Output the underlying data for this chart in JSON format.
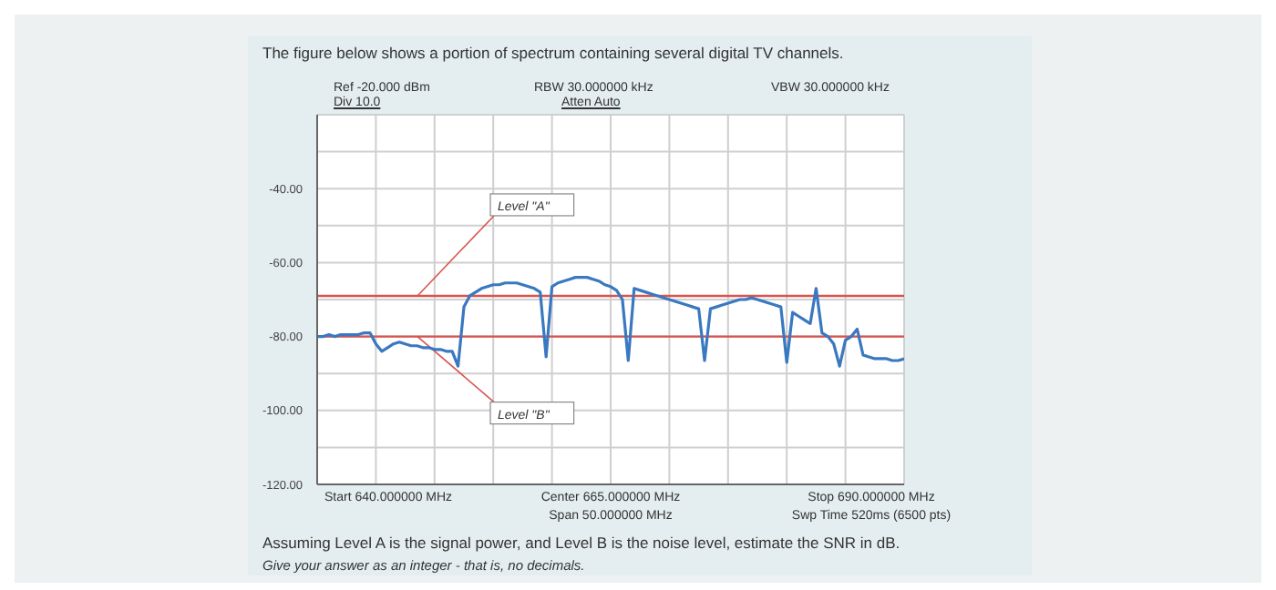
{
  "chart_data": {
    "type": "line",
    "title": "The figure below shows a portion of spectrum containing several digital TV channels.",
    "categories": [
      null,
      null,
      null,
      null,
      null,
      null,
      null,
      null,
      null,
      null,
      null,
      null,
      null,
      null,
      null,
      null,
      null,
      null,
      null,
      null,
      null,
      null,
      null,
      null,
      null,
      null,
      null,
      null,
      null,
      null,
      null,
      null,
      null,
      null,
      null,
      null,
      null,
      null,
      null,
      null,
      null,
      null,
      null,
      null,
      null,
      null,
      null,
      null,
      null,
      null,
      null,
      null,
      null,
      null,
      null,
      null,
      null,
      null,
      null,
      null,
      null,
      null,
      null,
      null,
      null,
      null,
      null,
      null,
      null,
      null,
      null,
      null,
      null,
      null,
      null,
      null,
      null,
      null,
      null,
      null,
      null,
      null,
      null,
      null,
      null,
      null,
      null,
      null,
      null,
      null,
      null,
      null,
      null,
      null,
      null,
      null,
      null,
      null,
      null,
      null,
      null
    ],
    "series": [
      {
        "color": "#3a78c0",
        "values": [
          -80,
          -80,
          -79.5,
          -80,
          -79.5,
          -79.5,
          -79.5,
          -79.5,
          -79,
          -79,
          -82,
          -84,
          -83,
          -82,
          -81.5,
          -82,
          -82.5,
          -82.5,
          -83,
          -83,
          -83.5,
          -83.5,
          -84,
          -84,
          -88,
          -72,
          -69,
          -68,
          -67,
          -66.5,
          -66,
          -66,
          -65.5,
          -65.5,
          -65.5,
          -66,
          -66.5,
          -67,
          -68,
          -85.5,
          -66.5,
          -65.5,
          -65,
          -64.5,
          -64,
          -64,
          -64,
          -64.5,
          -65,
          -66,
          -66.5,
          -67.5,
          -70,
          -86.5,
          -67,
          -67.5,
          -68,
          -68.5,
          -69,
          -69.5,
          -70,
          -70.5,
          -71,
          -71.5,
          -72,
          -72.5,
          -86.5,
          -72.5,
          -72,
          -71.5,
          -71,
          -70.5,
          -70,
          -70,
          -69.5,
          -70,
          -70.5,
          -71,
          -71.5,
          -72,
          -87,
          -73.5,
          -74.5,
          -75.5,
          -76.5,
          -67,
          -79,
          -80,
          -82,
          -88,
          -81,
          -80,
          -78,
          -85,
          -85.5,
          -86,
          -86,
          -86,
          -86.5,
          -86.5,
          -86
        ]
      }
    ],
    "ylim": [
      -120,
      -20
    ],
    "yticks": [
      {
        "value": -120,
        "label": "-120.00"
      },
      {
        "value": -110,
        "label": null
      },
      {
        "value": -100,
        "label": "-100.00"
      },
      {
        "value": -90,
        "label": null
      },
      {
        "value": -80,
        "label": "-80.00"
      },
      {
        "value": -70,
        "label": null
      },
      {
        "value": -60,
        "label": "-60.00"
      },
      {
        "value": -50,
        "label": null
      },
      {
        "value": -40,
        "label": "-40.00"
      },
      {
        "value": -30,
        "label": null
      },
      {
        "value": -20,
        "label": null
      }
    ],
    "tick_labels": "y",
    "grid": true,
    "ref_lines": [
      {
        "axis": "y",
        "value": -69,
        "label": "Level \"A\"",
        "color": "#d9534f"
      },
      {
        "axis": "y",
        "value": -80,
        "label": "Level \"B\"",
        "color": "#d9534f"
      }
    ],
    "annotations": [
      "Ref -20.000 dBm",
      "Div 10.0",
      "RBW 30.000000 kHz",
      "Atten Auto",
      "VBW 30.000000 kHz",
      "Start 640.000000 MHz",
      "Center 665.000000 MHz",
      "Span 50.000000 MHz",
      "Stop 690.000000 MHz",
      "Swp Time 520ms (6500 pts)",
      "Assuming Level A is the signal power, and Level B is the noise level, estimate the SNR in dB.",
      "Give your answer as an integer - that is, no decimals."
    ]
  }
}
